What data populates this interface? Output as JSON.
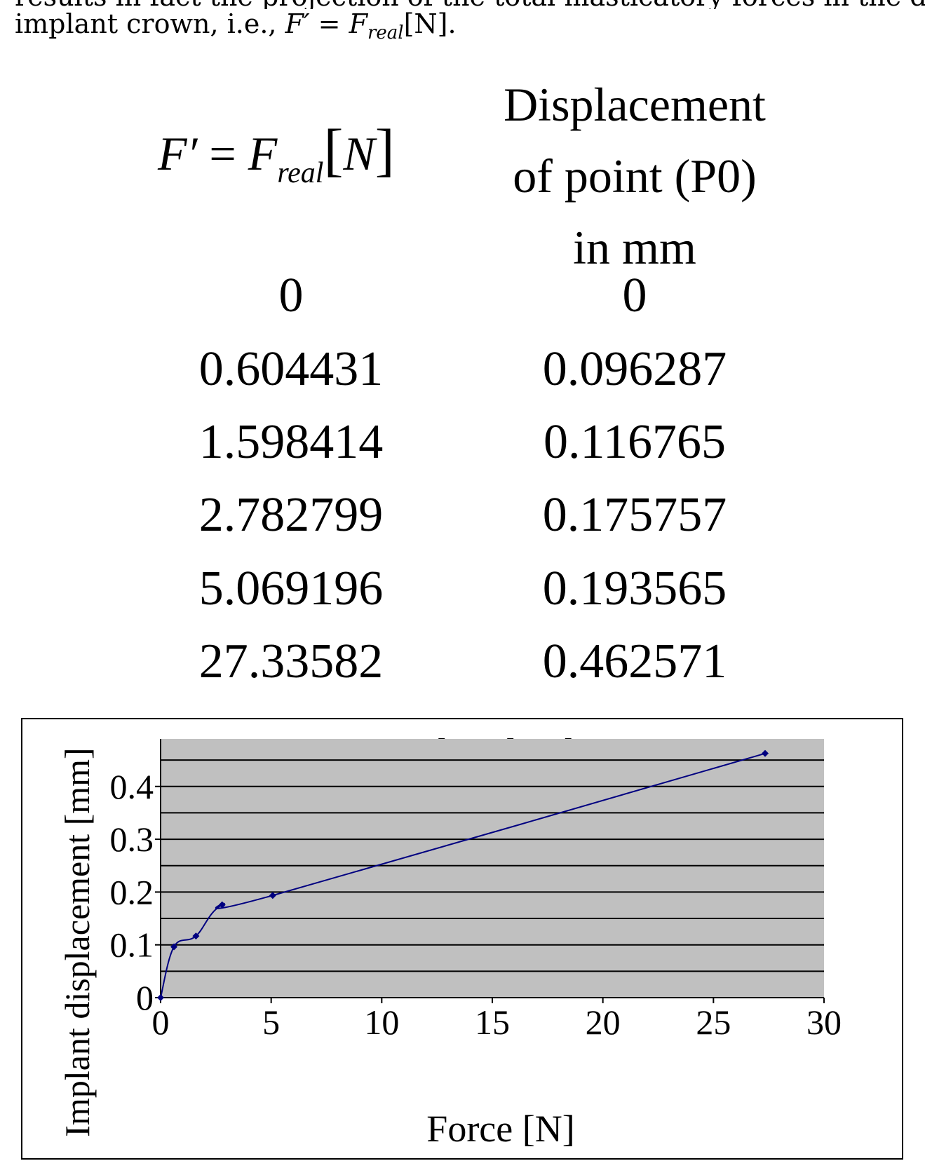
{
  "intro": {
    "cut_line": "results in fact the projection of the total masticatory forces in the direc",
    "prefix": "implant crown, i.e., ",
    "math_left": "F′",
    "equals": " = ",
    "math_right": "F",
    "math_sub": "real",
    "math_unit": "[N]",
    "suffix": "."
  },
  "table": {
    "col1_header": {
      "lhs": "F′",
      "eq": " = ",
      "base": "F",
      "sub": "real",
      "bracket_open": "[",
      "unit": "N",
      "bracket_close": "]"
    },
    "col2_header_lines": [
      "Displacement",
      "of point (P0)",
      "in mm"
    ],
    "rows": [
      [
        "0",
        "0"
      ],
      [
        "0.604431",
        "0.096287"
      ],
      [
        "1.598414",
        "0.116765"
      ],
      [
        "2.782799",
        "0.175757"
      ],
      [
        "5.069196",
        "0.193565"
      ],
      [
        "27.33582",
        "0.462571"
      ]
    ]
  },
  "chart_data": {
    "type": "line",
    "title": "Implant loading",
    "xlabel": "Force [N]",
    "ylabel": "Implant displacement [mm]",
    "xlim": [
      0,
      30
    ],
    "ylim": [
      0,
      0.5
    ],
    "x_ticks": [
      "0",
      "5",
      "10",
      "15",
      "20",
      "25",
      "30"
    ],
    "y_ticks": [
      "0",
      "0.1",
      "0.2",
      "0.3",
      "0.4"
    ],
    "grid": true,
    "plot_background": "#c0c0c0",
    "line_color": "#000080",
    "series": [
      {
        "x": [
          0,
          0.604431,
          1.598414,
          2.782799,
          5.069196,
          27.33582
        ],
        "y": [
          0,
          0.096287,
          0.116765,
          0.175757,
          0.193565,
          0.462571
        ]
      }
    ]
  }
}
